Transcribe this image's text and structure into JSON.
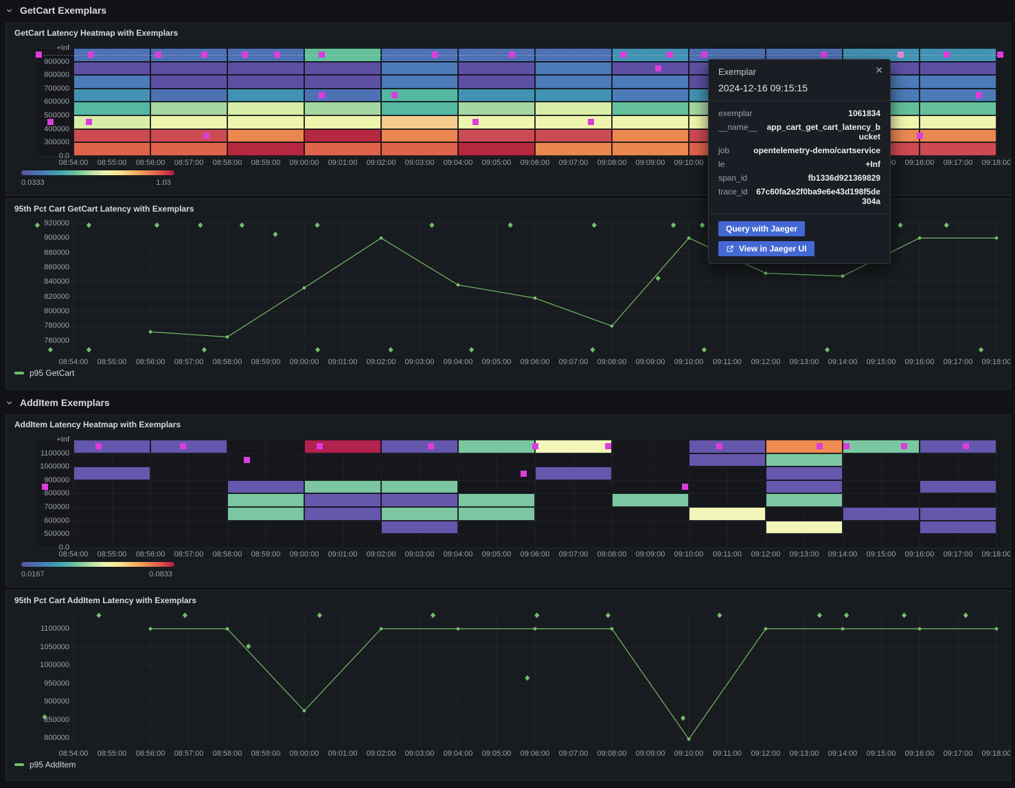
{
  "sections": [
    {
      "label": "GetCart Exemplars"
    },
    {
      "label": "AddItem Exemplars"
    }
  ],
  "x_axis": {
    "labels": [
      "08:54:00",
      "08:55:00",
      "08:56:00",
      "08:57:00",
      "08:58:00",
      "08:59:00",
      "09:00:00",
      "09:01:00",
      "09:02:00",
      "09:03:00",
      "09:04:00",
      "09:05:00",
      "09:06:00",
      "09:07:00",
      "09:08:00",
      "09:09:00",
      "09:10:00",
      "09:11:00",
      "09:12:00",
      "09:13:00",
      "09:14:00",
      "09:15:00",
      "09:16:00",
      "09:17:00",
      "09:18:00"
    ]
  },
  "palette": {
    "sb": "#4e71b4",
    "pu": "#5d50a4",
    "bl": "#4d7ab8",
    "tb": "#4292b4",
    "tg": "#55b8a2",
    "gn": "#63c09b",
    "lg": "#a5d7a0",
    "yg": "#d8eda6",
    "py": "#eef6ad",
    "pe": "#f7cd8e",
    "or": "#eb8850",
    "ro": "#e0634c",
    "rd": "#cd4a52",
    "cr": "#b52840",
    "mg": "#b2224f",
    "pu2": "#6557ab",
    "gn2": "#7cc7a2",
    "py2": "#f2f6b8",
    "or2": "#ef8b51"
  },
  "colors": {
    "exemplar": "#dd3ddd",
    "exemplar_faded": "#d98ad0",
    "line_green": "#73bf69",
    "button_blue": "#4468d4"
  },
  "chart_data": [
    {
      "type": "heatmap",
      "title": "GetCart Latency Heatmap with Exemplars",
      "y_labels": [
        "+Inf",
        "900000",
        "800000",
        "700000",
        "600000",
        "500000",
        "400000",
        "300000",
        "0.0"
      ],
      "column_span_minutes": 2,
      "columns": [
        {
          "t": 0,
          "cells": [
            "sb",
            "pu",
            "bl",
            "tb",
            "tg",
            "yg",
            "rd",
            "ro"
          ]
        },
        {
          "t": 2,
          "cells": [
            "sb",
            "pu",
            "pu",
            "sb",
            "lg",
            "py",
            "rd",
            "ro"
          ]
        },
        {
          "t": 4,
          "cells": [
            "sb",
            "pu",
            "pu",
            "tb",
            "yg",
            "py",
            "or",
            "cr"
          ]
        },
        {
          "t": 6,
          "cells": [
            "gn",
            "pu",
            "pu",
            "sb",
            "lg",
            "py",
            "cr",
            "ro"
          ]
        },
        {
          "t": 8,
          "cells": [
            "sb",
            "bl",
            "bl",
            "tg",
            "tg",
            "pe",
            "or",
            "ro"
          ]
        },
        {
          "t": 10,
          "cells": [
            "sb",
            "pu",
            "pu",
            "tb",
            "lg",
            "py",
            "rd",
            "cr"
          ]
        },
        {
          "t": 12,
          "cells": [
            "sb",
            "bl",
            "bl",
            "tb",
            "yg",
            "py",
            "rd",
            "or"
          ]
        },
        {
          "t": 14,
          "cells": [
            "tb",
            "pu",
            "bl",
            "bl",
            "gn",
            "py",
            "or",
            "or"
          ]
        },
        {
          "t": 16,
          "cells": [
            "sb",
            "pu",
            "pu",
            "tb",
            "lg",
            "py",
            "rd",
            "ro"
          ]
        },
        {
          "t": 18,
          "cells": [
            "sb",
            "pu",
            "bl",
            "tb",
            "gn",
            "py",
            "or",
            "rd"
          ]
        },
        {
          "t": 20,
          "cells": [
            "tb",
            "pu",
            "bl",
            "bl",
            "gn",
            "py",
            "or",
            "rd"
          ]
        },
        {
          "t": 22,
          "cells": [
            "tb",
            "pu",
            "bl",
            "bl",
            "gn",
            "py",
            "or",
            "rd"
          ]
        }
      ],
      "dashed_row": 0,
      "exemplars": [
        {
          "t": -0.9,
          "row": 0
        },
        {
          "t": 0.45,
          "row": 0
        },
        {
          "t": 2.2,
          "row": 0
        },
        {
          "t": 3.4,
          "row": 0
        },
        {
          "t": 4.45,
          "row": 0
        },
        {
          "t": 5.3,
          "row": 0
        },
        {
          "t": 6.45,
          "row": 0
        },
        {
          "t": 9.4,
          "row": 0
        },
        {
          "t": 11.4,
          "row": 0
        },
        {
          "t": 14.3,
          "row": 0
        },
        {
          "t": 15.5,
          "row": 0
        },
        {
          "t": 16.4,
          "row": 0
        },
        {
          "t": 19.5,
          "row": 0
        },
        {
          "t": 21.5,
          "row": 0,
          "faded": true
        },
        {
          "t": 22.7,
          "row": 0
        },
        {
          "t": 24.1,
          "row": 0
        },
        {
          "t": 15.2,
          "row": 1
        },
        {
          "t": 6.45,
          "row": 3
        },
        {
          "t": 8.35,
          "row": 3
        },
        {
          "t": 23.55,
          "row": 3
        },
        {
          "t": -0.6,
          "row": 5
        },
        {
          "t": 0.4,
          "row": 5
        },
        {
          "t": 10.45,
          "row": 5
        },
        {
          "t": 13.45,
          "row": 5
        },
        {
          "t": 3.45,
          "row": 6
        },
        {
          "t": 22.0,
          "row": 6
        }
      ],
      "scale": {
        "min": "0.0333",
        "max": "1.03"
      }
    },
    {
      "type": "line",
      "title": "95th Pct Cart GetCart Latency with Exemplars",
      "legend": "p95 GetCart",
      "y_ticks": [
        920000,
        900000,
        880000,
        860000,
        840000,
        820000,
        800000,
        780000,
        760000
      ],
      "y_domain": [
        742000,
        922000
      ],
      "x": [
        2,
        4,
        6,
        8,
        10,
        12,
        14,
        16,
        18,
        20,
        22,
        24
      ],
      "values": [
        772000,
        765000,
        832000,
        900000,
        836000,
        818000,
        780000,
        900000,
        852000,
        848000,
        900000,
        900000
      ],
      "exemplars": [
        {
          "t": -0.94,
          "v": 917500
        },
        {
          "t": 0.4,
          "v": 917500
        },
        {
          "t": 2.17,
          "v": 917500
        },
        {
          "t": 3.3,
          "v": 917500
        },
        {
          "t": 4.38,
          "v": 917500
        },
        {
          "t": 6.34,
          "v": 917500
        },
        {
          "t": 9.32,
          "v": 917500
        },
        {
          "t": 11.36,
          "v": 917500
        },
        {
          "t": 13.54,
          "v": 917500
        },
        {
          "t": 15.6,
          "v": 917500
        },
        {
          "t": 16.35,
          "v": 917500
        },
        {
          "t": 21.5,
          "v": 917500
        },
        {
          "t": 22.7,
          "v": 917500
        },
        {
          "t": 5.25,
          "v": 905000
        },
        {
          "t": 15.2,
          "v": 845000
        },
        {
          "t": -0.6,
          "v": 747500
        },
        {
          "t": 0.4,
          "v": 747500
        },
        {
          "t": 3.4,
          "v": 747500
        },
        {
          "t": 6.35,
          "v": 747500
        },
        {
          "t": 8.25,
          "v": 747500
        },
        {
          "t": 10.35,
          "v": 747500
        },
        {
          "t": 13.5,
          "v": 747500
        },
        {
          "t": 16.4,
          "v": 747500
        },
        {
          "t": 19.6,
          "v": 747500
        },
        {
          "t": 23.6,
          "v": 747500
        }
      ]
    },
    {
      "type": "heatmap",
      "title": "AddItem Latency Heatmap with Exemplars",
      "y_labels": [
        "+Inf",
        "1100000",
        "1000000",
        "900000",
        "800000",
        "700000",
        "600000",
        "500000",
        "0.0"
      ],
      "column_span_minutes": 2,
      "columns": [
        {
          "t": 0,
          "cells": [
            "pu2",
            null,
            "pu2",
            null,
            null,
            null,
            null,
            null
          ]
        },
        {
          "t": 2,
          "cells": [
            "pu2",
            null,
            null,
            null,
            null,
            null,
            null,
            null
          ]
        },
        {
          "t": 4,
          "cells": [
            null,
            null,
            null,
            "pu2",
            "gn2",
            "gn2",
            null,
            null
          ]
        },
        {
          "t": 6,
          "cells": [
            "mg",
            null,
            null,
            "gn2",
            "pu2",
            "pu2",
            null,
            null
          ]
        },
        {
          "t": 8,
          "cells": [
            "pu2",
            null,
            null,
            "gn2",
            "pu2",
            "gn2",
            "pu2",
            null
          ]
        },
        {
          "t": 10,
          "cells": [
            "gn2",
            null,
            null,
            null,
            "gn2",
            "gn2",
            null,
            null
          ]
        },
        {
          "t": 12,
          "cells": [
            "py2",
            null,
            "pu2",
            null,
            null,
            null,
            null,
            null
          ]
        },
        {
          "t": 14,
          "cells": [
            null,
            null,
            null,
            null,
            "gn2",
            null,
            null,
            null
          ]
        },
        {
          "t": 16,
          "cells": [
            "pu2",
            "pu2",
            null,
            null,
            null,
            "py2",
            null,
            null
          ]
        },
        {
          "t": 18,
          "cells": [
            "or2",
            "gn2",
            "pu2",
            "pu2",
            "gn2",
            null,
            "py2",
            null
          ]
        },
        {
          "t": 20,
          "cells": [
            "gn2",
            null,
            null,
            null,
            null,
            "pu2",
            null,
            null
          ]
        },
        {
          "t": 22,
          "cells": [
            "pu2",
            null,
            null,
            "pu2",
            null,
            "pu2",
            "pu2",
            null
          ]
        }
      ],
      "dashed_row": null,
      "exemplars": [
        {
          "t": 0.65,
          "row": 0
        },
        {
          "t": 2.85,
          "row": 0
        },
        {
          "t": 6.4,
          "row": 0
        },
        {
          "t": 9.3,
          "row": 0
        },
        {
          "t": 12.0,
          "row": 0
        },
        {
          "t": 13.9,
          "row": 0
        },
        {
          "t": 16.8,
          "row": 0
        },
        {
          "t": 19.4,
          "row": 0
        },
        {
          "t": 20.1,
          "row": 0
        },
        {
          "t": 21.6,
          "row": 0
        },
        {
          "t": 23.2,
          "row": 0
        },
        {
          "t": 4.5,
          "row": 1
        },
        {
          "t": 11.7,
          "row": 2
        },
        {
          "t": -0.75,
          "row": 3
        },
        {
          "t": 15.9,
          "row": 3
        }
      ],
      "scale": {
        "min": "0.0167",
        "max": "0.0833"
      }
    },
    {
      "type": "line",
      "title": "95th Pct Cart AddItem Latency with Exemplars",
      "legend": "p95 AddItem",
      "y_ticks": [
        1100000,
        1050000,
        1000000,
        950000,
        900000,
        850000,
        800000
      ],
      "y_domain": [
        780000,
        1142000
      ],
      "x": [
        2,
        4,
        6,
        8,
        10,
        12,
        14,
        16,
        18,
        20,
        22,
        24
      ],
      "values": [
        1100000,
        1100000,
        875000,
        1100000,
        1100000,
        1100000,
        1100000,
        797000,
        1100000,
        1100000,
        1100000,
        1100000
      ],
      "exemplars": [
        {
          "t": 0.66,
          "v": 1137000
        },
        {
          "t": 2.9,
          "v": 1137000
        },
        {
          "t": 6.4,
          "v": 1137000
        },
        {
          "t": 9.35,
          "v": 1137000
        },
        {
          "t": 12.05,
          "v": 1137000
        },
        {
          "t": 13.9,
          "v": 1137000
        },
        {
          "t": 16.8,
          "v": 1137000
        },
        {
          "t": 19.4,
          "v": 1137000
        },
        {
          "t": 20.1,
          "v": 1137000
        },
        {
          "t": 21.6,
          "v": 1137000
        },
        {
          "t": 23.2,
          "v": 1137000
        },
        {
          "t": -0.75,
          "v": 858000
        },
        {
          "t": 4.55,
          "v": 1052000
        },
        {
          "t": 11.8,
          "v": 965000
        },
        {
          "t": 15.85,
          "v": 855000
        }
      ]
    }
  ],
  "tooltip": {
    "title": "Exemplar",
    "timestamp": "2024-12-16 09:15:15",
    "fields": [
      {
        "key": "exemplar",
        "value": "1061834"
      },
      {
        "key": "__name__",
        "value": "app_cart_get_cart_latency_bucket"
      },
      {
        "key": "job",
        "value": "opentelemetry-demo/cartservice"
      },
      {
        "key": "le",
        "value": "+Inf"
      },
      {
        "key": "span_id",
        "value": "fb1336d921369829"
      },
      {
        "key": "trace_id",
        "value": "67c60fa2e2f0ba9e6e43d198f5de304a"
      }
    ],
    "buttons": [
      "Query with Jaeger",
      "View in Jaeger UI"
    ]
  }
}
